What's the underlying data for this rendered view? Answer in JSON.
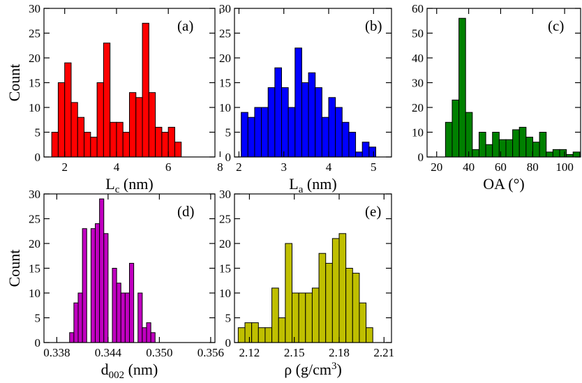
{
  "chart_data": [
    {
      "type": "bar",
      "panel_label": "(a)",
      "xlabel_main": "L",
      "xlabel_sub": "c",
      "xlabel_unit": " (nm)",
      "ylabel": "Count",
      "color": "#ff0000",
      "xlim": [
        1.2,
        7.8
      ],
      "ylim": [
        0,
        30
      ],
      "xticks": [
        2,
        4,
        6,
        8
      ],
      "xtick_labels": [
        "2",
        "4",
        "6",
        "8"
      ],
      "yticks": [
        0,
        5,
        10,
        15,
        20,
        25,
        30
      ],
      "ytick_labels": [
        "0",
        "5",
        "10",
        "15",
        "20",
        "25",
        "30"
      ],
      "bin_start": 1.5,
      "bin_width": 0.25,
      "values": [
        5,
        15,
        19,
        11,
        8,
        5,
        4,
        15,
        23,
        7,
        7,
        5,
        13,
        12,
        27,
        13,
        6,
        5,
        6,
        3
      ]
    },
    {
      "type": "bar",
      "panel_label": "(b)",
      "xlabel_main": "L",
      "xlabel_sub": "a",
      "xlabel_unit": " (nm)",
      "ylabel": "",
      "color": "#0000ff",
      "xlim": [
        1.9,
        5.4
      ],
      "ylim": [
        0,
        30
      ],
      "xticks": [
        2,
        3,
        4,
        5
      ],
      "xtick_labels": [
        "2",
        "3",
        "4",
        "5"
      ],
      "yticks": [
        0,
        5,
        10,
        15,
        20,
        25,
        30
      ],
      "ytick_labels": [
        "0",
        "5",
        "10",
        "15",
        "20",
        "25",
        "30"
      ],
      "bin_start": 2.05,
      "bin_width": 0.15,
      "values": [
        9,
        8,
        10,
        10,
        14,
        18,
        14,
        10,
        22,
        15,
        17,
        14,
        8,
        12,
        10,
        7,
        5,
        1,
        3,
        2
      ]
    },
    {
      "type": "bar",
      "panel_label": "(c)",
      "xlabel_main": "OA (°)",
      "xlabel_sub": "",
      "xlabel_unit": "",
      "ylabel": "",
      "color": "#008000",
      "xlim": [
        14,
        110
      ],
      "ylim": [
        0,
        60
      ],
      "xticks": [
        20,
        40,
        60,
        80,
        100
      ],
      "xtick_labels": [
        "20",
        "40",
        "60",
        "80",
        "100"
      ],
      "yticks": [
        0,
        10,
        20,
        30,
        40,
        50,
        60
      ],
      "ytick_labels": [
        "0",
        "10",
        "20",
        "30",
        "40",
        "50",
        "60"
      ],
      "bin_start": 25.5,
      "bin_width": 4.2,
      "values": [
        14,
        23,
        56,
        18,
        3,
        10,
        5,
        10,
        7,
        7,
        11,
        12,
        8,
        6,
        10,
        2,
        3,
        3,
        1,
        2
      ]
    },
    {
      "type": "bar",
      "panel_label": "(d)",
      "xlabel_main": "d",
      "xlabel_sub": "002",
      "xlabel_unit": " (nm)",
      "ylabel": "Count",
      "color": "#c000c0",
      "xlim": [
        0.3365,
        0.3565
      ],
      "ylim": [
        0,
        30
      ],
      "xticks": [
        0.338,
        0.344,
        0.35,
        0.356
      ],
      "xtick_labels": [
        "0.338",
        "0.344",
        "0.350",
        "0.356"
      ],
      "yticks": [
        0,
        5,
        10,
        15,
        20,
        25,
        30
      ],
      "ytick_labels": [
        "0",
        "5",
        "10",
        "15",
        "20",
        "25",
        "30"
      ],
      "bin_start": 0.3395,
      "bin_width": 0.0005,
      "values": [
        2,
        8,
        10,
        23,
        0,
        23,
        24,
        29,
        22,
        0,
        15,
        12,
        10,
        10,
        16,
        0,
        10,
        3,
        4,
        2
      ]
    },
    {
      "type": "bar",
      "panel_label": "(e)",
      "xlabel_main": "ρ (g/cm",
      "xlabel_sup": "3",
      "xlabel_unit": ")",
      "ylabel": "",
      "color": "#bfbf00",
      "xlim": [
        2.11,
        2.215
      ],
      "ylim": [
        0,
        30
      ],
      "xticks": [
        2.12,
        2.15,
        2.18,
        2.21
      ],
      "xtick_labels": [
        "2.12",
        "2.15",
        "2.18",
        "2.21"
      ],
      "yticks": [
        0,
        5,
        10,
        15,
        20,
        25,
        30
      ],
      "ytick_labels": [
        "0",
        "5",
        "10",
        "15",
        "20",
        "25",
        "30"
      ],
      "bin_start": 2.1125,
      "bin_width": 0.0045,
      "values": [
        3,
        4,
        4,
        3,
        3,
        11,
        5,
        20,
        10,
        10,
        10,
        11,
        18,
        16,
        21,
        22,
        15,
        14,
        8,
        3
      ]
    }
  ]
}
